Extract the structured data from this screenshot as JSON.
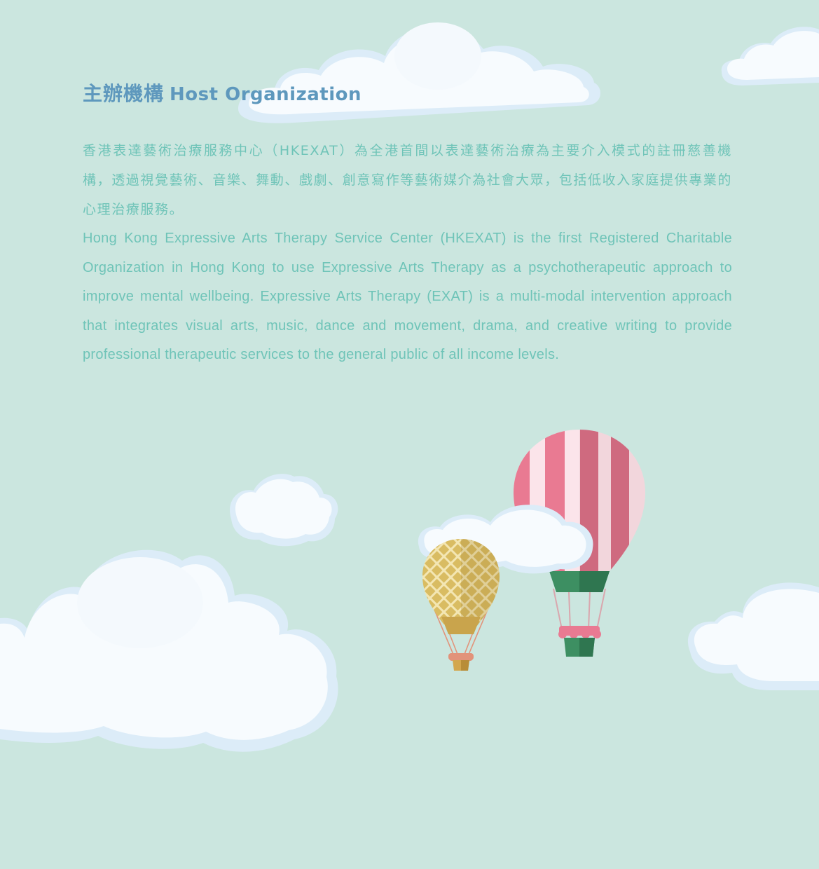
{
  "heading": {
    "zh": "主辦機構",
    "en": "Host Organization"
  },
  "description": {
    "zh": "香港表達藝術治療服務中心（HKEXAT）為全港首間以表達藝術治療為主要介入模式的註冊慈善機構，透過視覺藝術、音樂、舞動、戲劇、創意寫作等藝術媒介為社會大眾，包括低收入家庭提供專業的心理治療服務。",
    "en": "Hong Kong Expressive Arts Therapy Service Center (HKEXAT) is the first Registered Charitable Organization in Hong Kong to use Expressive Arts Therapy as a psychotherapeutic approach to improve mental wellbeing. Expressive Arts Therapy (EXAT) is a multi-modal intervention approach that integrates visual arts, music, dance and movement, drama, and creative writing to provide professional therapeutic services to the general public of all income levels."
  },
  "colors": {
    "background": "#cbe6df",
    "heading": "#5e98bd",
    "body_text": "#6fc4b8",
    "cloud": "#f6fbfe",
    "cloud_shadow": "#dcecf8",
    "balloon_pink": "#e97a92",
    "balloon_gold": "#d3b45f",
    "basket_green": "#3d8f62"
  },
  "illustration": {
    "icons": [
      "cloud-icon",
      "hot-air-balloon-striped-icon",
      "hot-air-balloon-lattice-icon"
    ]
  }
}
